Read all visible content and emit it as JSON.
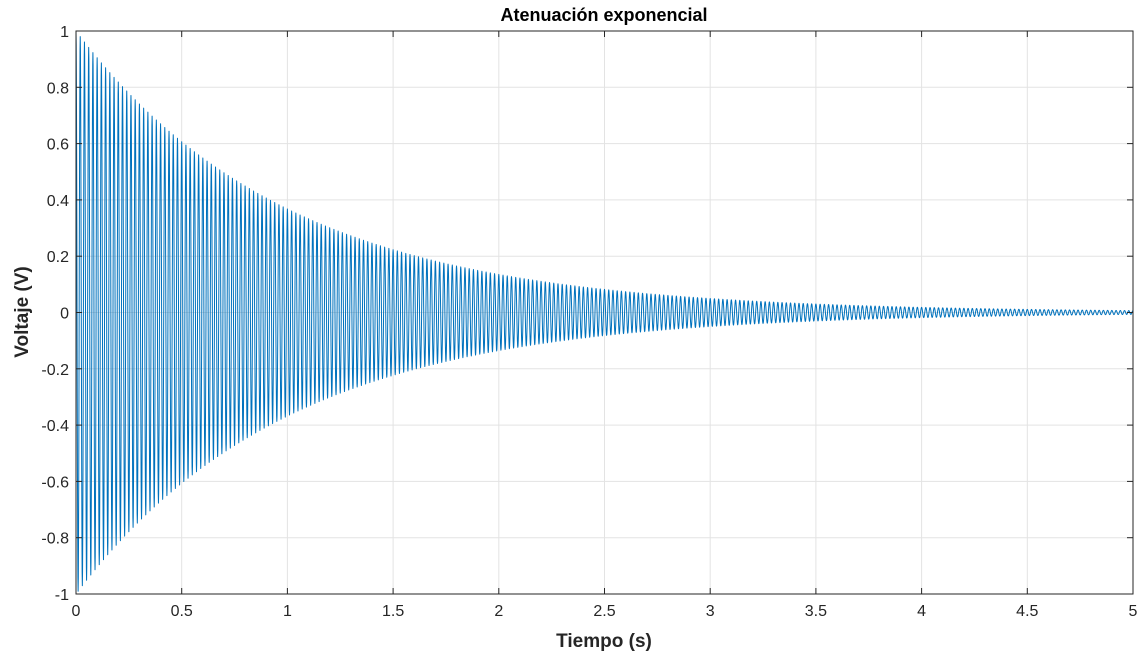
{
  "chart_data": {
    "type": "line",
    "title": "Atenuación exponencial",
    "xlabel": "Tiempo (s)",
    "ylabel": "Voltaje (V)",
    "xlim": [
      0,
      5
    ],
    "ylim": [
      -1,
      1
    ],
    "xticks": [
      0,
      0.5,
      1,
      1.5,
      2,
      2.5,
      3,
      3.5,
      4,
      4.5,
      5
    ],
    "xtick_labels": [
      "0",
      "0.5",
      "1",
      "1.5",
      "2",
      "2.5",
      "3",
      "3.5",
      "4",
      "4.5",
      "5"
    ],
    "yticks": [
      -1,
      -0.8,
      -0.6,
      -0.4,
      -0.2,
      0,
      0.2,
      0.4,
      0.6,
      0.8,
      1
    ],
    "ytick_labels": [
      "-1",
      "-0.8",
      "-0.6",
      "-0.4",
      "-0.2",
      "0",
      "0.2",
      "0.4",
      "0.6",
      "0.8",
      "1"
    ],
    "grid": true,
    "series": [
      {
        "color": "#0072BD",
        "function": "y = exp(-t) * cos(2*pi*50*t)",
        "x_start": 0,
        "x_end": 5,
        "envelope_decay_rate": 1,
        "oscillation_frequency_hz": 50
      }
    ]
  }
}
